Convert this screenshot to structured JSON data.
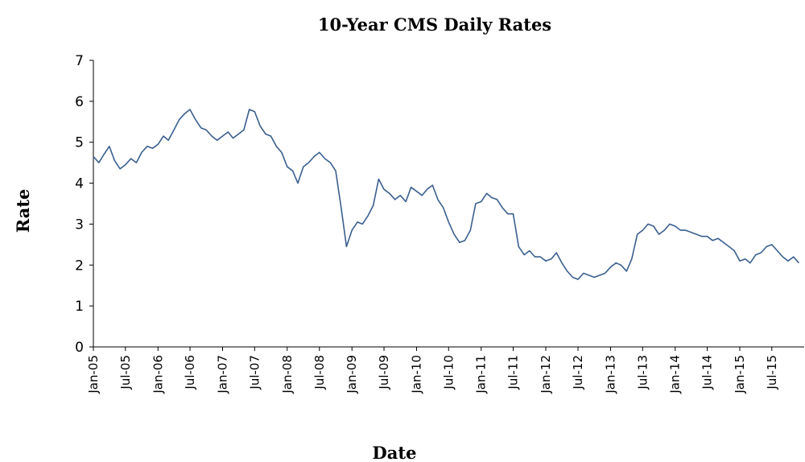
{
  "chart_data": {
    "type": "line",
    "title": "10-Year CMS Daily Rates",
    "xlabel": "Date",
    "ylabel": "Rate",
    "ylim": [
      0,
      7
    ],
    "yticks": [
      "0",
      "1",
      "2",
      "3",
      "4",
      "5",
      "6",
      "7"
    ],
    "xlim": [
      "2005-01-01",
      "2015-12-31"
    ],
    "xticks": [
      "Jan-05",
      "Jul-05",
      "Jan-06",
      "Jul-06",
      "Jan-07",
      "Jul-07",
      "Jan-08",
      "Jul-08",
      "Jan-09",
      "Jul-09",
      "Jan-10",
      "Jul-10",
      "Jan-11",
      "Jul-11",
      "Jan-12",
      "Jul-12",
      "Jan-13",
      "Jul-13",
      "Jan-14",
      "Jul-14",
      "Jan-15",
      "Jul-15"
    ],
    "grid": false,
    "legend": "none",
    "line_color": "#3a5f8f",
    "series": [
      {
        "x": [
          "2005-01-01",
          "2005-02-01",
          "2005-03-01",
          "2005-04-01",
          "2005-05-01",
          "2005-06-01",
          "2005-07-01",
          "2005-08-01",
          "2005-09-01",
          "2005-10-01",
          "2005-11-01",
          "2005-12-01",
          "2006-01-01",
          "2006-02-01",
          "2006-03-01",
          "2006-04-01",
          "2006-05-01",
          "2006-06-01",
          "2006-07-01",
          "2006-08-01",
          "2006-09-01",
          "2006-10-01",
          "2006-11-01",
          "2006-12-01",
          "2007-01-01",
          "2007-02-01",
          "2007-03-01",
          "2007-04-01",
          "2007-05-01",
          "2007-06-01",
          "2007-07-01",
          "2007-08-01",
          "2007-09-01",
          "2007-10-01",
          "2007-11-01",
          "2007-12-01",
          "2008-01-01",
          "2008-02-01",
          "2008-03-01",
          "2008-04-01",
          "2008-05-01",
          "2008-06-01",
          "2008-07-01",
          "2008-08-01",
          "2008-09-01",
          "2008-10-01",
          "2008-11-01",
          "2008-12-01",
          "2009-01-01",
          "2009-02-01",
          "2009-03-01",
          "2009-04-01",
          "2009-05-01",
          "2009-06-01",
          "2009-07-01",
          "2009-08-01",
          "2009-09-01",
          "2009-10-01",
          "2009-11-01",
          "2009-12-01",
          "2010-01-01",
          "2010-02-01",
          "2010-03-01",
          "2010-04-01",
          "2010-05-01",
          "2010-06-01",
          "2010-07-01",
          "2010-08-01",
          "2010-09-01",
          "2010-10-01",
          "2010-11-01",
          "2010-12-01",
          "2011-01-01",
          "2011-02-01",
          "2011-03-01",
          "2011-04-01",
          "2011-05-01",
          "2011-06-01",
          "2011-07-01",
          "2011-08-01",
          "2011-09-01",
          "2011-10-01",
          "2011-11-01",
          "2011-12-01",
          "2012-01-01",
          "2012-02-01",
          "2012-03-01",
          "2012-04-01",
          "2012-05-01",
          "2012-06-01",
          "2012-07-01",
          "2012-08-01",
          "2012-09-01",
          "2012-10-01",
          "2012-11-01",
          "2012-12-01",
          "2013-01-01",
          "2013-02-01",
          "2013-03-01",
          "2013-04-01",
          "2013-05-01",
          "2013-06-01",
          "2013-07-01",
          "2013-08-01",
          "2013-09-01",
          "2013-10-01",
          "2013-11-01",
          "2013-12-01",
          "2014-01-01",
          "2014-02-01",
          "2014-03-01",
          "2014-04-01",
          "2014-05-01",
          "2014-06-01",
          "2014-07-01",
          "2014-08-01",
          "2014-09-01",
          "2014-10-01",
          "2014-11-01",
          "2014-12-01",
          "2015-01-01",
          "2015-02-01",
          "2015-03-01",
          "2015-04-01",
          "2015-05-01",
          "2015-06-01",
          "2015-07-01",
          "2015-08-01",
          "2015-09-01",
          "2015-10-01",
          "2015-11-01",
          "2015-12-01"
        ],
        "values": [
          4.65,
          4.5,
          4.7,
          4.9,
          4.55,
          4.35,
          4.45,
          4.6,
          4.5,
          4.75,
          4.9,
          4.85,
          4.95,
          5.15,
          5.05,
          5.3,
          5.55,
          5.7,
          5.8,
          5.55,
          5.35,
          5.3,
          5.15,
          5.05,
          5.15,
          5.25,
          5.1,
          5.2,
          5.3,
          5.8,
          5.75,
          5.4,
          5.2,
          5.15,
          4.9,
          4.75,
          4.4,
          4.3,
          4.0,
          4.4,
          4.5,
          4.65,
          4.75,
          4.6,
          4.5,
          4.3,
          3.4,
          2.45,
          2.85,
          3.05,
          3.0,
          3.2,
          3.45,
          4.1,
          3.85,
          3.75,
          3.6,
          3.7,
          3.55,
          3.9,
          3.8,
          3.7,
          3.85,
          3.95,
          3.6,
          3.4,
          3.05,
          2.75,
          2.55,
          2.6,
          2.85,
          3.5,
          3.55,
          3.75,
          3.65,
          3.6,
          3.4,
          3.25,
          3.25,
          2.45,
          2.25,
          2.35,
          2.2,
          2.2,
          2.1,
          2.15,
          2.3,
          2.05,
          1.85,
          1.7,
          1.65,
          1.8,
          1.75,
          1.7,
          1.75,
          1.8,
          1.95,
          2.05,
          2.0,
          1.85,
          2.15,
          2.75,
          2.85,
          3.0,
          2.95,
          2.75,
          2.85,
          3.0,
          2.95,
          2.85,
          2.85,
          2.8,
          2.75,
          2.7,
          2.7,
          2.6,
          2.65,
          2.55,
          2.45,
          2.35,
          2.1,
          2.15,
          2.05,
          2.25,
          2.3,
          2.45,
          2.5,
          2.35,
          2.2,
          2.1,
          2.2,
          2.05
        ]
      }
    ]
  }
}
